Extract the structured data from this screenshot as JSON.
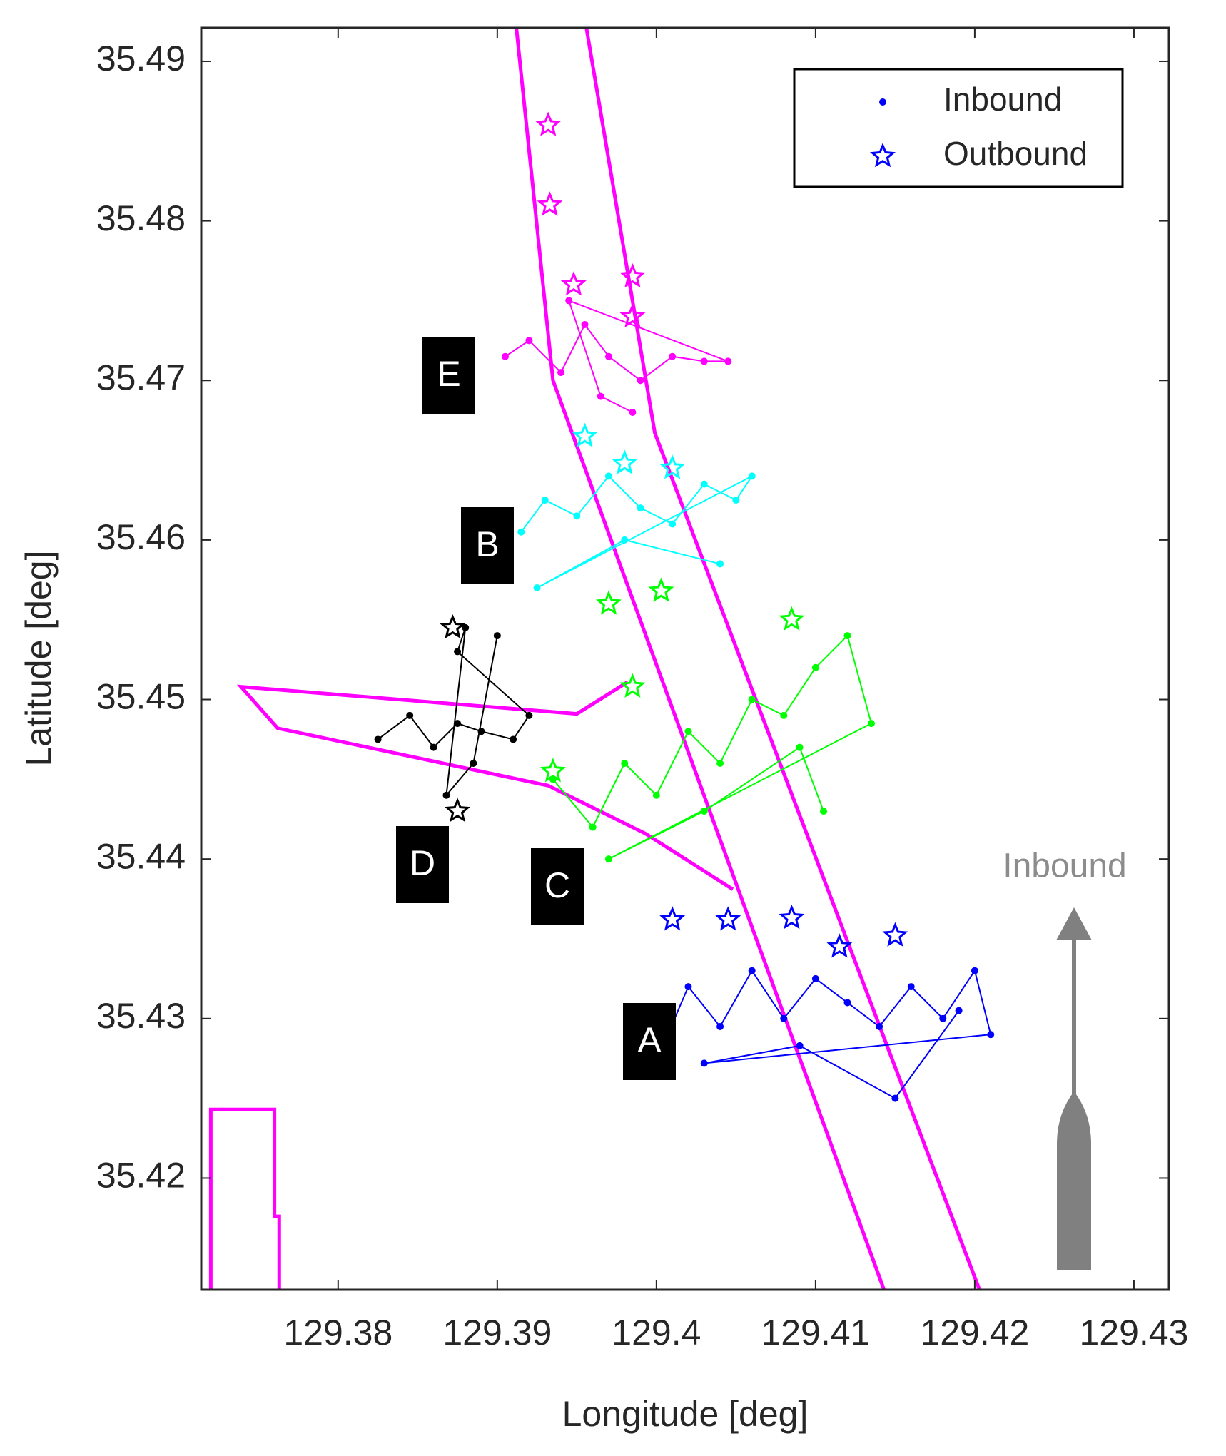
{
  "chart_data": {
    "type": "scatter",
    "xlabel": "Longitude [deg]",
    "ylabel": "Latitude [deg]",
    "xlim": [
      129.3714,
      129.4322
    ],
    "ylim": [
      35.413,
      35.4921
    ],
    "xticks": [
      129.38,
      129.39,
      129.4,
      129.41,
      129.42,
      129.43
    ],
    "yticks": [
      35.42,
      35.43,
      35.44,
      35.45,
      35.46,
      35.47,
      35.48,
      35.49
    ],
    "legend": {
      "position": "upper right",
      "color": "#0000ff",
      "entries": [
        {
          "name": "Inbound",
          "marker": "dot"
        },
        {
          "name": "Outbound",
          "marker": "star"
        }
      ]
    },
    "annotation": "Inbound",
    "channel": {
      "color": "#ff00ff",
      "lines": [
        {
          "x": [
            129.3912,
            129.3935,
            129.4143
          ],
          "y": [
            35.4921,
            35.47,
            35.413
          ]
        },
        {
          "x": [
            129.3956,
            129.3999,
            129.4203
          ],
          "y": [
            35.4921,
            35.4667,
            35.413
          ]
        },
        {
          "x": [
            129.3982,
            129.395,
            129.3739,
            129.3762,
            129.3932,
            129.3993,
            129.4048
          ],
          "y": [
            35.4511,
            35.4491,
            35.4508,
            35.4482,
            35.4446,
            35.4416,
            35.4381
          ]
        },
        {
          "x": [
            129.372,
            129.372,
            129.376,
            129.376,
            129.3763,
            129.3763
          ],
          "y": [
            35.413,
            35.4243,
            35.4243,
            35.4176,
            35.4176,
            35.413
          ]
        }
      ]
    },
    "series": [
      {
        "label": "E",
        "color": "#ff00ff",
        "inbound": {
          "x": [
            129.3905,
            129.392,
            129.394,
            129.3955,
            129.397,
            129.399,
            129.401,
            129.403,
            129.4045,
            129.3945,
            129.3965,
            129.3985
          ],
          "y": [
            35.4715,
            35.4725,
            35.4705,
            35.4735,
            35.4715,
            35.47,
            35.4715,
            35.4712,
            35.4712,
            35.475,
            35.469,
            35.468
          ]
        },
        "outbound": {
          "x": [
            129.3932,
            129.3933,
            129.3948,
            129.3985,
            129.3985
          ],
          "y": [
            35.486,
            35.481,
            35.476,
            35.4765,
            35.474
          ]
        }
      },
      {
        "label": "B",
        "color": "#00ffff",
        "inbound": {
          "x": [
            129.3915,
            129.393,
            129.395,
            129.397,
            129.399,
            129.401,
            129.403,
            129.405,
            129.406,
            129.3925,
            129.398,
            129.404
          ],
          "y": [
            35.4605,
            35.4625,
            35.4615,
            35.464,
            35.462,
            35.461,
            35.4635,
            35.4625,
            35.464,
            35.457,
            35.46,
            35.4585
          ]
        },
        "outbound": {
          "x": [
            129.3955,
            129.398,
            129.401
          ],
          "y": [
            35.4665,
            35.4648,
            35.4645
          ]
        }
      },
      {
        "label": "D",
        "color": "#000000",
        "inbound": {
          "x": [
            129.3825,
            129.3845,
            129.386,
            129.3875,
            129.389,
            129.391,
            129.392,
            129.3875,
            129.388,
            129.3868,
            129.3885,
            129.39
          ],
          "y": [
            35.4475,
            35.449,
            35.447,
            35.4485,
            35.448,
            35.4475,
            35.449,
            35.453,
            35.4545,
            35.444,
            35.446,
            35.454
          ]
        },
        "outbound": {
          "x": [
            129.3875,
            129.3872
          ],
          "y": [
            35.443,
            35.4545
          ]
        }
      },
      {
        "label": "C",
        "color": "#00ff00",
        "inbound": {
          "x": [
            129.3935,
            129.396,
            129.398,
            129.4,
            129.402,
            129.404,
            129.406,
            129.408,
            129.41,
            129.412,
            129.4135,
            129.397,
            129.403,
            129.409,
            129.4105
          ],
          "y": [
            35.445,
            35.442,
            35.446,
            35.444,
            35.448,
            35.446,
            35.45,
            35.449,
            35.452,
            35.454,
            35.4485,
            35.44,
            35.443,
            35.447,
            35.443
          ]
        },
        "outbound": {
          "x": [
            129.3935,
            129.397,
            129.3985,
            129.4003,
            129.4085
          ],
          "y": [
            35.4455,
            35.456,
            35.4508,
            35.4568,
            35.455
          ]
        }
      },
      {
        "label": "A",
        "color": "#0000ff",
        "inbound": {
          "x": [
            129.4005,
            129.402,
            129.404,
            129.406,
            129.408,
            129.41,
            129.412,
            129.414,
            129.416,
            129.418,
            129.42,
            129.421,
            129.403,
            129.409,
            129.415,
            129.419
          ],
          "y": [
            35.4285,
            35.432,
            35.4295,
            35.433,
            35.43,
            35.4325,
            35.431,
            35.4295,
            35.432,
            35.43,
            35.433,
            35.429,
            35.4272,
            35.4283,
            35.425,
            35.4305
          ]
        },
        "outbound": {
          "x": [
            129.401,
            129.4045,
            129.4085,
            129.4115,
            129.415
          ],
          "y": [
            35.4362,
            35.4362,
            35.4363,
            35.4345,
            35.4352
          ]
        }
      }
    ]
  }
}
